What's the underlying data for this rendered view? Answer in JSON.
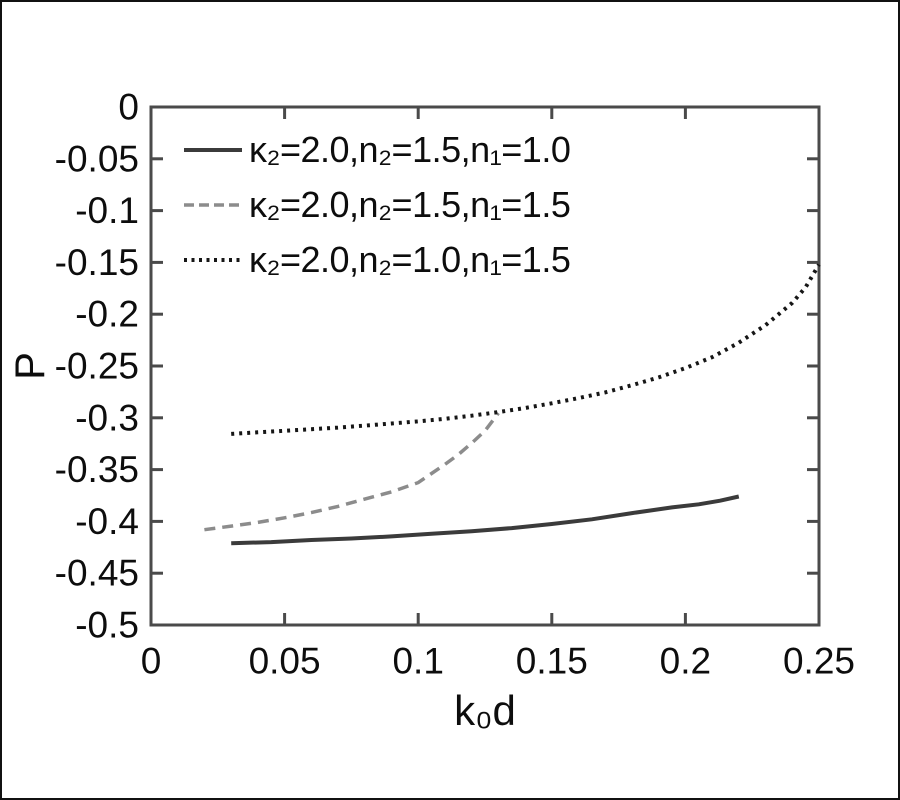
{
  "chart_data": {
    "type": "line",
    "title": "",
    "xlabel": "k₀d",
    "ylabel": "P",
    "xlim": [
      0,
      0.25
    ],
    "ylim": [
      -0.5,
      0
    ],
    "grid": false,
    "legend_position": "top-left-inside",
    "x_ticks": [
      0,
      0.05,
      0.1,
      0.15,
      0.2,
      0.25
    ],
    "x_tick_labels": [
      "0",
      "0.05",
      "0.1",
      "0.15",
      "0.2",
      "0.25"
    ],
    "y_ticks": [
      0,
      -0.05,
      -0.1,
      -0.15,
      -0.2,
      -0.25,
      -0.3,
      -0.35,
      -0.4,
      -0.45,
      -0.5
    ],
    "y_tick_labels": [
      "0",
      "-0.05",
      "-0.1",
      "-0.15",
      "-0.2",
      "-0.25",
      "-0.3",
      "-0.35",
      "-0.4",
      "-0.45",
      "-0.5"
    ],
    "axis_color": "#4a4a4a",
    "series": [
      {
        "name": "kappa2=2.0 n2=1.5 n1=1.0",
        "label": "κ₂=2.0,n₂=1.5,n₁=1.0",
        "style": "solid",
        "color": "#3b3b3b",
        "width": 4,
        "points": [
          [
            0.03,
            -0.421
          ],
          [
            0.045,
            -0.42
          ],
          [
            0.06,
            -0.418
          ],
          [
            0.075,
            -0.4165
          ],
          [
            0.09,
            -0.4145
          ],
          [
            0.105,
            -0.412
          ],
          [
            0.12,
            -0.4095
          ],
          [
            0.135,
            -0.4065
          ],
          [
            0.15,
            -0.4025
          ],
          [
            0.165,
            -0.398
          ],
          [
            0.18,
            -0.392
          ],
          [
            0.195,
            -0.3865
          ],
          [
            0.205,
            -0.3835
          ],
          [
            0.213,
            -0.38
          ],
          [
            0.22,
            -0.376
          ]
        ]
      },
      {
        "name": "kappa2=2.0 n2=1.5 n1=1.5",
        "label": "κ₂=2.0,n₂=1.5,n₁=1.5",
        "style": "dashed",
        "color": "#8c8c8c",
        "width": 3.5,
        "points": [
          [
            0.02,
            -0.408
          ],
          [
            0.03,
            -0.4045
          ],
          [
            0.04,
            -0.401
          ],
          [
            0.05,
            -0.3965
          ],
          [
            0.06,
            -0.3915
          ],
          [
            0.07,
            -0.3855
          ],
          [
            0.08,
            -0.3785
          ],
          [
            0.09,
            -0.3715
          ],
          [
            0.1,
            -0.3625
          ],
          [
            0.11,
            -0.345
          ],
          [
            0.115,
            -0.3355
          ],
          [
            0.12,
            -0.3245
          ],
          [
            0.125,
            -0.3125
          ],
          [
            0.13,
            -0.2955
          ]
        ]
      },
      {
        "name": "kappa2=2.0 n2=1.0 n1=1.5",
        "label": "κ₂=2.0,n₂=1.0,n₁=1.5",
        "style": "dotted",
        "color": "#161616",
        "width": 4,
        "points": [
          [
            0.03,
            -0.3155
          ],
          [
            0.04,
            -0.314
          ],
          [
            0.05,
            -0.3125
          ],
          [
            0.06,
            -0.311
          ],
          [
            0.07,
            -0.3095
          ],
          [
            0.08,
            -0.3075
          ],
          [
            0.09,
            -0.3055
          ],
          [
            0.1,
            -0.3035
          ],
          [
            0.11,
            -0.301
          ],
          [
            0.12,
            -0.298
          ],
          [
            0.13,
            -0.2945
          ],
          [
            0.14,
            -0.2905
          ],
          [
            0.15,
            -0.286
          ],
          [
            0.16,
            -0.281
          ],
          [
            0.17,
            -0.2755
          ],
          [
            0.18,
            -0.2685
          ],
          [
            0.19,
            -0.261
          ],
          [
            0.2,
            -0.252
          ],
          [
            0.21,
            -0.2415
          ],
          [
            0.22,
            -0.2275
          ],
          [
            0.23,
            -0.2105
          ],
          [
            0.24,
            -0.189
          ],
          [
            0.245,
            -0.174
          ],
          [
            0.25,
            -0.152
          ]
        ]
      }
    ]
  }
}
